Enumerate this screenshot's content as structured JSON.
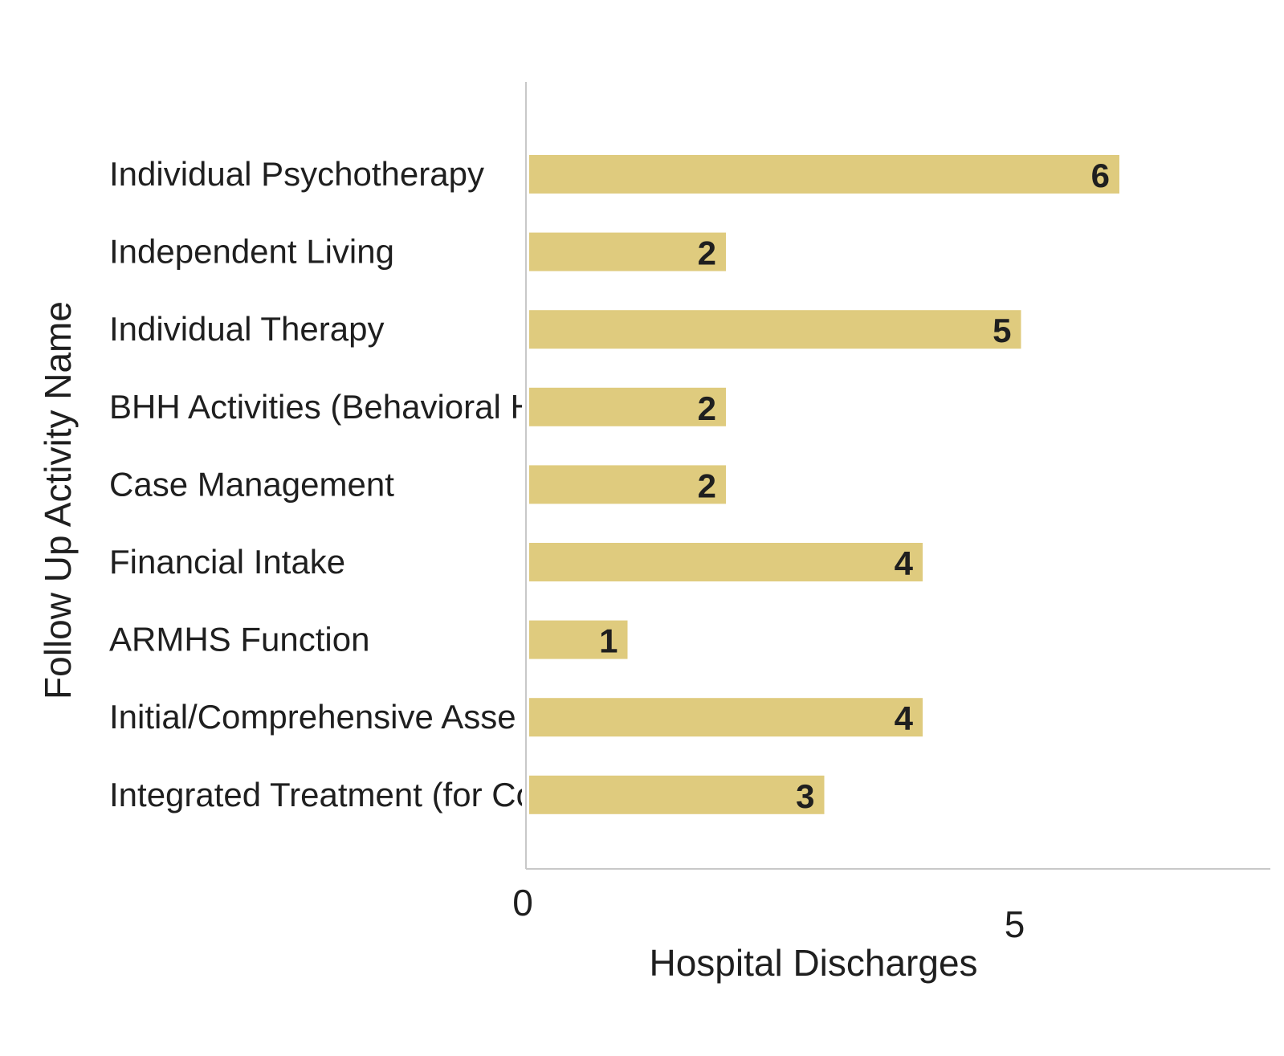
{
  "chart_data": {
    "type": "bar",
    "orientation": "horizontal",
    "categories": [
      "Individual Psychotherapy",
      "Independent Living",
      "Individual Therapy",
      "BHH Activities (Behavioral H",
      "Case Management",
      "Financial Intake",
      "ARMHS Function",
      "Initial/Comprehensive Asse",
      "Integrated Treatment (for Co"
    ],
    "values": [
      6,
      2,
      5,
      2,
      2,
      4,
      1,
      4,
      3
    ],
    "value_labels": [
      "6",
      "2",
      "5",
      "2",
      "2",
      "4",
      "1",
      "4",
      "3"
    ],
    "xlabel": "Hospital Discharges",
    "ylabel": "Follow Up Activity Name",
    "xticks": [
      0,
      5
    ],
    "xtick_labels": [
      "0",
      "5"
    ],
    "xlim": [
      0,
      7.5
    ],
    "grid": false,
    "bar_color": "#dfcb7e"
  }
}
